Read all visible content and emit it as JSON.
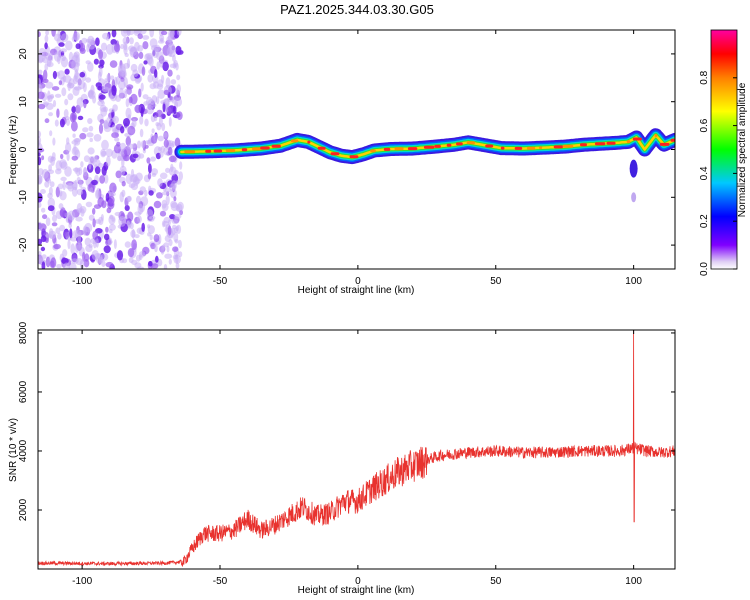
{
  "title": "PAZ1.2025.344.03.30.G05",
  "chart_data": [
    {
      "type": "heatmap",
      "xlabel": "Height of straight line (km)",
      "ylabel": "Frequency (Hz)",
      "xlim": [
        -116,
        115
      ],
      "ylim": [
        -25,
        25
      ],
      "xticks": [
        -100,
        -50,
        0,
        50,
        100
      ],
      "yticks": [
        -20,
        -10,
        0,
        10,
        20
      ],
      "colorbar": {
        "label": "Normalized spectral amplitude",
        "range": [
          0,
          1
        ],
        "ticks": [
          0.0,
          0.2,
          0.4,
          0.6,
          0.8
        ]
      },
      "noise_region_x": [
        -116,
        -64
      ],
      "ridge": {
        "x": [
          -64,
          -55,
          -45,
          -35,
          -28,
          -22,
          -18,
          -14,
          -10,
          -6,
          -2,
          2,
          6,
          12,
          20,
          28,
          35,
          40,
          45,
          52,
          60,
          68,
          75,
          82,
          88,
          94,
          98,
          101,
          104,
          108,
          111,
          115
        ],
        "freq": [
          -0.5,
          -0.4,
          -0.2,
          0.2,
          0.8,
          2.0,
          1.6,
          0.5,
          -0.6,
          -1.3,
          -1.6,
          -1.0,
          -0.2,
          0.1,
          0.2,
          0.6,
          1.0,
          1.5,
          1.0,
          0.3,
          0.2,
          0.4,
          0.6,
          1.0,
          1.2,
          1.4,
          1.6,
          2.5,
          0.0,
          3.0,
          1.0,
          2.0
        ]
      }
    },
    {
      "type": "line",
      "xlabel": "Height of straight line (km)",
      "ylabel": "SNR (10 * v/v)",
      "xlim": [
        -116,
        115
      ],
      "ylim": [
        0,
        8100
      ],
      "xticks": [
        -100,
        -50,
        0,
        50,
        100
      ],
      "yticks": [
        2000,
        4000,
        6000,
        8000
      ],
      "color": "#e8322e",
      "baseline": {
        "x": [
          -116,
          -90,
          -70,
          -63,
          -60,
          -56,
          -50,
          -45,
          -40,
          -35,
          -30,
          -25,
          -20,
          -15,
          -10,
          -5,
          0,
          5,
          10,
          15,
          20,
          25,
          30,
          40,
          50,
          60,
          70,
          80,
          90,
          95,
          100,
          105,
          110,
          115
        ],
        "y": [
          200,
          180,
          200,
          250,
          700,
          1200,
          1200,
          1300,
          1700,
          1300,
          1500,
          1800,
          2100,
          1800,
          1900,
          2300,
          2300,
          2700,
          3000,
          3300,
          3500,
          3700,
          3850,
          3950,
          4000,
          3950,
          3950,
          4000,
          4000,
          4000,
          4100,
          4000,
          3950,
          4000
        ]
      },
      "spike": {
        "x": 100,
        "max": 8100,
        "min": 1600
      }
    }
  ]
}
